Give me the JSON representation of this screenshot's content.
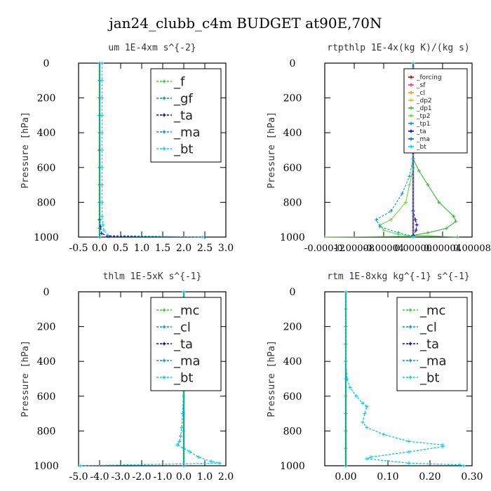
{
  "figure_title": "jan24_clubb_c4m  BUDGET at90E,70N",
  "chart_data": [
    {
      "type": "line",
      "title": "um  1E-4xm s^{-2}",
      "xlabel": "",
      "ylabel": "Pressure [hPa]",
      "xlim": [
        -0.5,
        3.0
      ],
      "ylim": [
        1000,
        0
      ],
      "y_inverted": true,
      "xticks": [
        -0.5,
        0.0,
        0.5,
        1.0,
        1.5,
        2.0,
        2.5,
        3.0
      ],
      "xtick_labels": [
        "-0.5",
        "0.0",
        "0.5",
        "1.0",
        "1.5",
        "2.0",
        "2.5",
        "3.0"
      ],
      "yticks": [
        0,
        200,
        400,
        600,
        800,
        1000
      ],
      "ytick_labels": [
        "0",
        "200",
        "400",
        "600",
        "800",
        "1000"
      ],
      "legend": {
        "placement": "top-right",
        "size": "large",
        "lines": true
      },
      "series": [
        {
          "name": "_f",
          "color": "#33cc33",
          "points": [
            [
              0.0,
              0
            ],
            [
              0.0,
              100
            ],
            [
              0.0,
              200
            ],
            [
              0.0,
              300
            ],
            [
              0.0,
              400
            ],
            [
              0.0,
              500
            ],
            [
              0.0,
              600
            ],
            [
              0.0,
              700
            ],
            [
              0.0,
              800
            ],
            [
              0.0,
              900
            ],
            [
              0.0,
              950
            ],
            [
              0.0,
              1000
            ]
          ]
        },
        {
          "name": "_gf",
          "color": "#009999",
          "points": [
            [
              0.0,
              0
            ],
            [
              0.0,
              100
            ],
            [
              0.0,
              200
            ],
            [
              0.0,
              300
            ],
            [
              0.0,
              400
            ],
            [
              0.0,
              500
            ],
            [
              0.0,
              600
            ],
            [
              0.0,
              700
            ],
            [
              0.0,
              800
            ],
            [
              0.0,
              900
            ],
            [
              0.0,
              950
            ],
            [
              0.0,
              1000
            ]
          ]
        },
        {
          "name": "_ta",
          "color": "#0000cc",
          "points": [
            [
              0.0,
              0
            ],
            [
              0.0,
              500
            ],
            [
              0.0,
              900
            ],
            [
              0.02,
              940
            ],
            [
              0.05,
              980
            ],
            [
              0.2,
              995
            ],
            [
              2.5,
              1000
            ]
          ]
        },
        {
          "name": "_ma",
          "color": "#0099cc",
          "points": [
            [
              0.0,
              0
            ],
            [
              0.0,
              1000
            ]
          ]
        },
        {
          "name": "_bt",
          "color": "#00ccff",
          "points": [
            [
              0.06,
              0
            ],
            [
              0.06,
              100
            ],
            [
              0.06,
              200
            ],
            [
              0.06,
              300
            ],
            [
              0.06,
              400
            ],
            [
              0.06,
              500
            ],
            [
              0.06,
              600
            ],
            [
              0.06,
              700
            ],
            [
              0.06,
              800
            ],
            [
              0.06,
              880
            ],
            [
              0.08,
              930
            ],
            [
              0.1,
              960
            ],
            [
              0.2,
              990
            ],
            [
              2.45,
              1000
            ]
          ]
        }
      ]
    },
    {
      "type": "line",
      "title": "rtpthlp  1E-4x(kg K)/(kg s)",
      "xlabel": "",
      "ylabel": "Pressure [hPa]",
      "xlim": [
        -0.00012,
        8e-05
      ],
      "ylim": [
        1000,
        0
      ],
      "y_inverted": true,
      "xticks": [
        -0.00012,
        -8e-05,
        -4e-05,
        0.0,
        4e-05,
        8e-05
      ],
      "xtick_labels": [
        "-0.00012",
        "-0.00008",
        "-0.00004",
        "0.00000",
        "0.00004",
        "0.00008"
      ],
      "yticks": [
        0,
        200,
        400,
        600,
        800,
        1000
      ],
      "ytick_labels": [
        "0",
        "200",
        "400",
        "600",
        "800",
        "1000"
      ],
      "legend": {
        "placement": "top-right",
        "size": "small",
        "lines": false
      },
      "series": [
        {
          "name": "_forcing",
          "color": "#cc0000",
          "points": [
            [
              0.0,
              0
            ],
            [
              0.0,
              1000
            ]
          ]
        },
        {
          "name": "_sf",
          "color": "#ff3366",
          "points": [
            [
              0.0,
              0
            ],
            [
              0.0,
              1000
            ]
          ]
        },
        {
          "name": "_cl",
          "color": "#ff9900",
          "points": [
            [
              0.0,
              0
            ],
            [
              0.0,
              1000
            ]
          ]
        },
        {
          "name": "_dp2",
          "color": "#cccc00",
          "points": [
            [
              0.0,
              0
            ],
            [
              0.0,
              1000
            ]
          ]
        },
        {
          "name": "_dp1",
          "color": "#33bb33",
          "points": [
            [
              0.0,
              0
            ],
            [
              0.0,
              550
            ],
            [
              8e-06,
              620
            ],
            [
              2e-05,
              700
            ],
            [
              3.5e-05,
              800
            ],
            [
              5.5e-05,
              880
            ],
            [
              5.8e-05,
              910
            ],
            [
              4.5e-05,
              950
            ],
            [
              2e-05,
              975
            ],
            [
              0.0,
              990
            ],
            [
              6e-05,
              1000
            ]
          ]
        },
        {
          "name": "_tp2",
          "color": "#66dd44",
          "points": [
            [
              0.0,
              0
            ],
            [
              0.0,
              600
            ],
            [
              -5e-06,
              700
            ],
            [
              -1e-05,
              800
            ],
            [
              -3e-05,
              900
            ],
            [
              -4.5e-05,
              930
            ],
            [
              -4e-05,
              960
            ],
            [
              -2e-05,
              985
            ],
            [
              0.0,
              995
            ],
            [
              -0.00012,
              1000
            ]
          ]
        },
        {
          "name": "_tp1",
          "color": "#0099cc",
          "points": [
            [
              0.0,
              0
            ],
            [
              0.0,
              550
            ],
            [
              -5e-06,
              650
            ],
            [
              -1.5e-05,
              750
            ],
            [
              -3e-05,
              850
            ],
            [
              -5e-05,
              900
            ],
            [
              -4.5e-05,
              940
            ],
            [
              -2e-05,
              975
            ],
            [
              0.0,
              995
            ]
          ]
        },
        {
          "name": "_ta",
          "color": "#0000cc",
          "points": [
            [
              0.0,
              0
            ],
            [
              0.0,
              850
            ],
            [
              3e-06,
              900
            ],
            [
              5e-06,
              930
            ],
            [
              4e-06,
              960
            ],
            [
              0.0,
              990
            ]
          ]
        },
        {
          "name": "_ma",
          "color": "#0066cc",
          "points": [
            [
              0.0,
              0
            ],
            [
              0.0,
              1000
            ]
          ]
        },
        {
          "name": "_bt",
          "color": "#00ccff",
          "points": [
            [
              0.0,
              0
            ],
            [
              0.0,
              1000
            ]
          ]
        }
      ]
    },
    {
      "type": "line",
      "title": "thlm  1E-5xK s^{-1}",
      "xlabel": "",
      "ylabel": "Pressure [hPa]",
      "xlim": [
        -5.0,
        2.0
      ],
      "ylim": [
        1000,
        0
      ],
      "y_inverted": true,
      "xticks": [
        -5.0,
        -4.0,
        -3.0,
        -2.0,
        -1.0,
        0.0,
        1.0,
        2.0
      ],
      "xtick_labels": [
        "-5.0",
        "-4.0",
        "-3.0",
        "-2.0",
        "-1.0",
        "0.0",
        "1.0",
        "2.0"
      ],
      "yticks": [
        0,
        200,
        400,
        600,
        800,
        1000
      ],
      "ytick_labels": [
        "0",
        "200",
        "400",
        "600",
        "800",
        "1000"
      ],
      "legend": {
        "placement": "top-right",
        "size": "large",
        "lines": true
      },
      "series": [
        {
          "name": "_mc",
          "color": "#33cc33",
          "points": [
            [
              0.0,
              0
            ],
            [
              0.0,
              100
            ],
            [
              0.0,
              200
            ],
            [
              0.0,
              300
            ],
            [
              0.0,
              400
            ],
            [
              0.0,
              500
            ],
            [
              0.0,
              600
            ],
            [
              0.0,
              700
            ],
            [
              0.0,
              800
            ],
            [
              0.0,
              900
            ],
            [
              0.0,
              1000
            ]
          ]
        },
        {
          "name": "_cl",
          "color": "#0099cc",
          "points": [
            [
              0.0,
              0
            ],
            [
              0.0,
              500
            ],
            [
              -0.05,
              700
            ],
            [
              -0.1,
              780
            ],
            [
              -0.15,
              830
            ],
            [
              -0.2,
              860
            ],
            [
              -0.3,
              880
            ],
            [
              0.3,
              920
            ],
            [
              0.7,
              950
            ],
            [
              1.3,
              975
            ],
            [
              1.7,
              985
            ],
            [
              -5.0,
              1000
            ]
          ]
        },
        {
          "name": "_ta",
          "color": "#0000cc",
          "points": [
            [
              0.0,
              0
            ],
            [
              0.0,
              1000
            ]
          ]
        },
        {
          "name": "_ma",
          "color": "#0099cc",
          "points": [
            [
              0.0,
              0
            ],
            [
              0.0,
              1000
            ]
          ]
        },
        {
          "name": "_bt",
          "color": "#00ccff",
          "points": [
            [
              0.0,
              0
            ],
            [
              0.0,
              500
            ],
            [
              -0.05,
              700
            ],
            [
              -0.1,
              780
            ],
            [
              -0.15,
              830
            ],
            [
              -0.2,
              860
            ],
            [
              -0.3,
              880
            ],
            [
              0.3,
              920
            ],
            [
              0.7,
              950
            ],
            [
              1.3,
              975
            ],
            [
              1.7,
              985
            ],
            [
              -4.9,
              1000
            ]
          ]
        }
      ]
    },
    {
      "type": "line",
      "title": "rtm  1E-8xkg kg^{-1} s^{-1}",
      "xlabel": "",
      "ylabel": "Pressure [hPa]",
      "xlim": [
        -0.05,
        0.3
      ],
      "ylim": [
        1000,
        0
      ],
      "y_inverted": true,
      "xticks": [
        0.0,
        0.1,
        0.2,
        0.3
      ],
      "xtick_labels": [
        "0.00",
        "0.10",
        "0.20",
        "0.30"
      ],
      "yticks": [
        0,
        200,
        400,
        600,
        800,
        1000
      ],
      "ytick_labels": [
        "0",
        "200",
        "400",
        "600",
        "800",
        "1000"
      ],
      "legend": {
        "placement": "top-right",
        "size": "large",
        "lines": true
      },
      "series": [
        {
          "name": "_mc",
          "color": "#33cc33",
          "points": [
            [
              0.0,
              0
            ],
            [
              0.0,
              100
            ],
            [
              0.0,
              200
            ],
            [
              0.0,
              300
            ],
            [
              0.0,
              400
            ],
            [
              0.0,
              500
            ],
            [
              0.0,
              600
            ],
            [
              0.0,
              700
            ],
            [
              0.0,
              800
            ],
            [
              0.0,
              900
            ],
            [
              0.0,
              1000
            ]
          ]
        },
        {
          "name": "_cl",
          "color": "#0099cc",
          "points": [
            [
              0.0,
              0
            ],
            [
              0.0,
              400
            ],
            [
              0.003,
              500
            ],
            [
              0.01,
              550
            ],
            [
              0.025,
              600
            ],
            [
              0.04,
              640
            ],
            [
              0.05,
              660
            ],
            [
              0.045,
              700
            ],
            [
              0.04,
              750
            ],
            [
              0.05,
              780
            ],
            [
              0.09,
              820
            ],
            [
              0.15,
              860
            ],
            [
              0.23,
              880
            ],
            [
              0.23,
              890
            ],
            [
              0.15,
              920
            ],
            [
              0.06,
              950
            ],
            [
              0.05,
              960
            ],
            [
              0.15,
              985
            ],
            [
              0.27,
              995
            ],
            [
              0.28,
              1000
            ]
          ]
        },
        {
          "name": "_ta",
          "color": "#0000cc",
          "points": [
            [
              0.0,
              0
            ],
            [
              0.0,
              1000
            ]
          ]
        },
        {
          "name": "_ma",
          "color": "#0099cc",
          "points": [
            [
              0.0,
              0
            ],
            [
              0.0,
              1000
            ]
          ]
        },
        {
          "name": "_bt",
          "color": "#00ccff",
          "points": [
            [
              0.0,
              0
            ],
            [
              0.0,
              400
            ],
            [
              0.003,
              500
            ],
            [
              0.01,
              550
            ],
            [
              0.025,
              600
            ],
            [
              0.04,
              640
            ],
            [
              0.05,
              660
            ],
            [
              0.045,
              700
            ],
            [
              0.04,
              750
            ],
            [
              0.05,
              780
            ],
            [
              0.09,
              820
            ],
            [
              0.15,
              860
            ],
            [
              0.23,
              880
            ],
            [
              0.23,
              890
            ],
            [
              0.15,
              920
            ],
            [
              0.06,
              950
            ],
            [
              0.05,
              960
            ],
            [
              0.15,
              985
            ],
            [
              0.27,
              995
            ],
            [
              0.28,
              1000
            ]
          ]
        }
      ]
    }
  ]
}
